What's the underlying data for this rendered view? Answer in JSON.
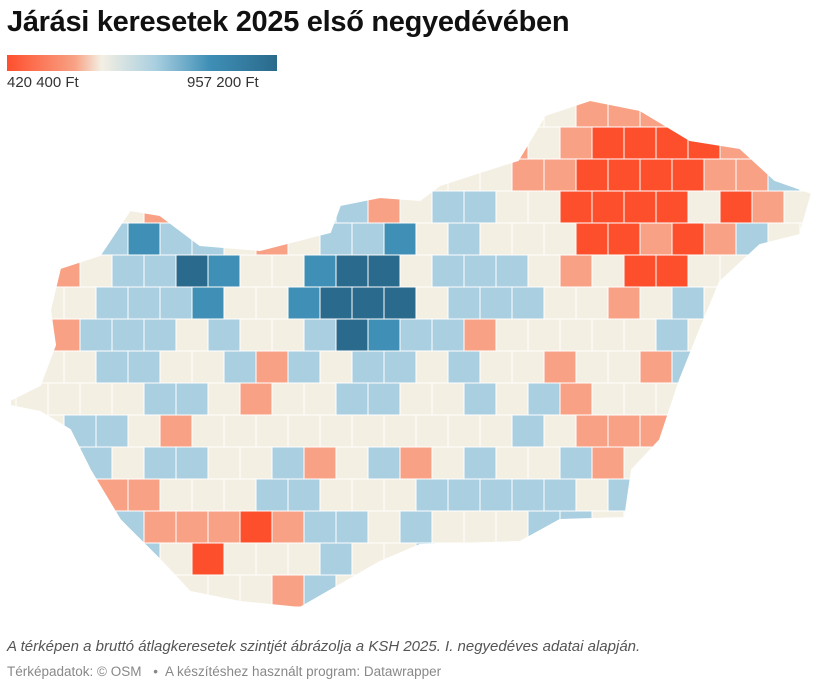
{
  "title": "Járási keresetek 2025 első negyedévében",
  "legend": {
    "min_label": "420 400 Ft",
    "max_label": "957 200 Ft",
    "colors": [
      "#fe4f2d",
      "#f8a184",
      "#f4efe3",
      "#a9cfe0",
      "#3f8fb6",
      "#2a6a8c"
    ]
  },
  "note": "A térképen a bruttó átlagkeresetek szintjét ábrázolja a KSH 2025. I. negyedéves adatai alapján.",
  "credits": {
    "map_data": "Térképadatok: © OSM",
    "separator": "•",
    "tool": "A készítéshez használt program: Datawrapper"
  }
}
